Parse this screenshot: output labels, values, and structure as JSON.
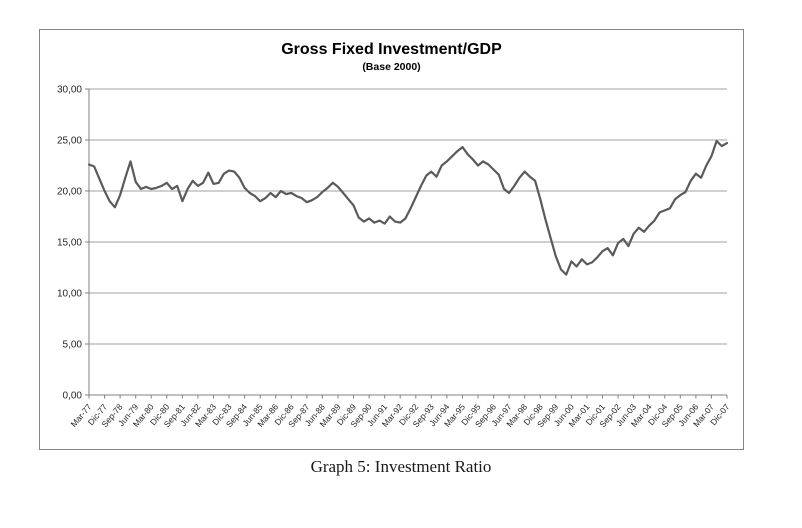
{
  "figure": {
    "title": "Gross Fixed Investment/GDP",
    "subtitle": "(Base 2000)",
    "caption": "Graph 5: Investment Ratio"
  },
  "chart_data": {
    "type": "line",
    "title": "Gross Fixed Investment/GDP",
    "subtitle": "(Base 2000)",
    "x_unit": "quarterly, Mar-77 through Dic-07",
    "x_tick_every": 3,
    "x_tick_labels": [
      "Mar-77",
      "Dic-77",
      "Sep-78",
      "Jun-79",
      "Mar-80",
      "Dic-80",
      "Sep-81",
      "Jun-82",
      "Mar-83",
      "Dic-83",
      "Sep-84",
      "Jun-85",
      "Mar-86",
      "Dic-86",
      "Sep-87",
      "Jun-88",
      "Mar-89",
      "Dic-89",
      "Sep-90",
      "Jun-91",
      "Mar-92",
      "Dic-92",
      "Sep-93",
      "Jun-94",
      "Mar-95",
      "Dic-95",
      "Sep-96",
      "Jun-97",
      "Mar-98",
      "Dic-98",
      "Sep-99",
      "Jun-00",
      "Mar-01",
      "Dic-01",
      "Sep-02",
      "Jun-03",
      "Mar-04",
      "Dic-04",
      "Sep-05",
      "Jun-06",
      "Mar-07",
      "Dic-07"
    ],
    "values": [
      22.6,
      22.4,
      21.2,
      20.0,
      19.0,
      18.4,
      19.6,
      21.3,
      22.9,
      20.9,
      20.2,
      20.4,
      20.2,
      20.3,
      20.5,
      20.8,
      20.2,
      20.5,
      19.0,
      20.2,
      21.0,
      20.5,
      20.8,
      21.8,
      20.7,
      20.8,
      21.7,
      22.0,
      21.9,
      21.3,
      20.3,
      19.8,
      19.5,
      19.0,
      19.3,
      19.8,
      19.4,
      20.0,
      19.7,
      19.8,
      19.5,
      19.3,
      18.9,
      19.1,
      19.4,
      19.9,
      20.3,
      20.8,
      20.4,
      19.8,
      19.2,
      18.6,
      17.4,
      17.0,
      17.3,
      16.9,
      17.1,
      16.8,
      17.5,
      17.0,
      16.9,
      17.3,
      18.3,
      19.4,
      20.5,
      21.5,
      21.9,
      21.4,
      22.5,
      22.9,
      23.4,
      23.9,
      24.3,
      23.6,
      23.1,
      22.5,
      22.9,
      22.6,
      22.1,
      21.6,
      20.2,
      19.8,
      20.5,
      21.3,
      21.9,
      21.4,
      21.0,
      19.2,
      17.2,
      15.4,
      13.6,
      12.3,
      11.8,
      13.1,
      12.6,
      13.3,
      12.8,
      13.0,
      13.5,
      14.1,
      14.4,
      13.7,
      14.9,
      15.3,
      14.6,
      15.8,
      16.4,
      16.0,
      16.6,
      17.1,
      17.9,
      18.1,
      18.3,
      19.2,
      19.6,
      19.9,
      21.0,
      21.7,
      21.3,
      22.5,
      23.4,
      24.9,
      24.4,
      24.7
    ],
    "ylim": [
      0,
      30
    ],
    "yticks": [
      0,
      5,
      10,
      15,
      20,
      25,
      30
    ],
    "ytick_labels": [
      "0,00",
      "5,00",
      "10,00",
      "15,00",
      "20,00",
      "25,00",
      "30,00"
    ],
    "grid": "horizontal",
    "legend": "none",
    "line_color": "#5a5a5a",
    "grid_color": "#a0a0a0",
    "axis_color": "#808080"
  }
}
